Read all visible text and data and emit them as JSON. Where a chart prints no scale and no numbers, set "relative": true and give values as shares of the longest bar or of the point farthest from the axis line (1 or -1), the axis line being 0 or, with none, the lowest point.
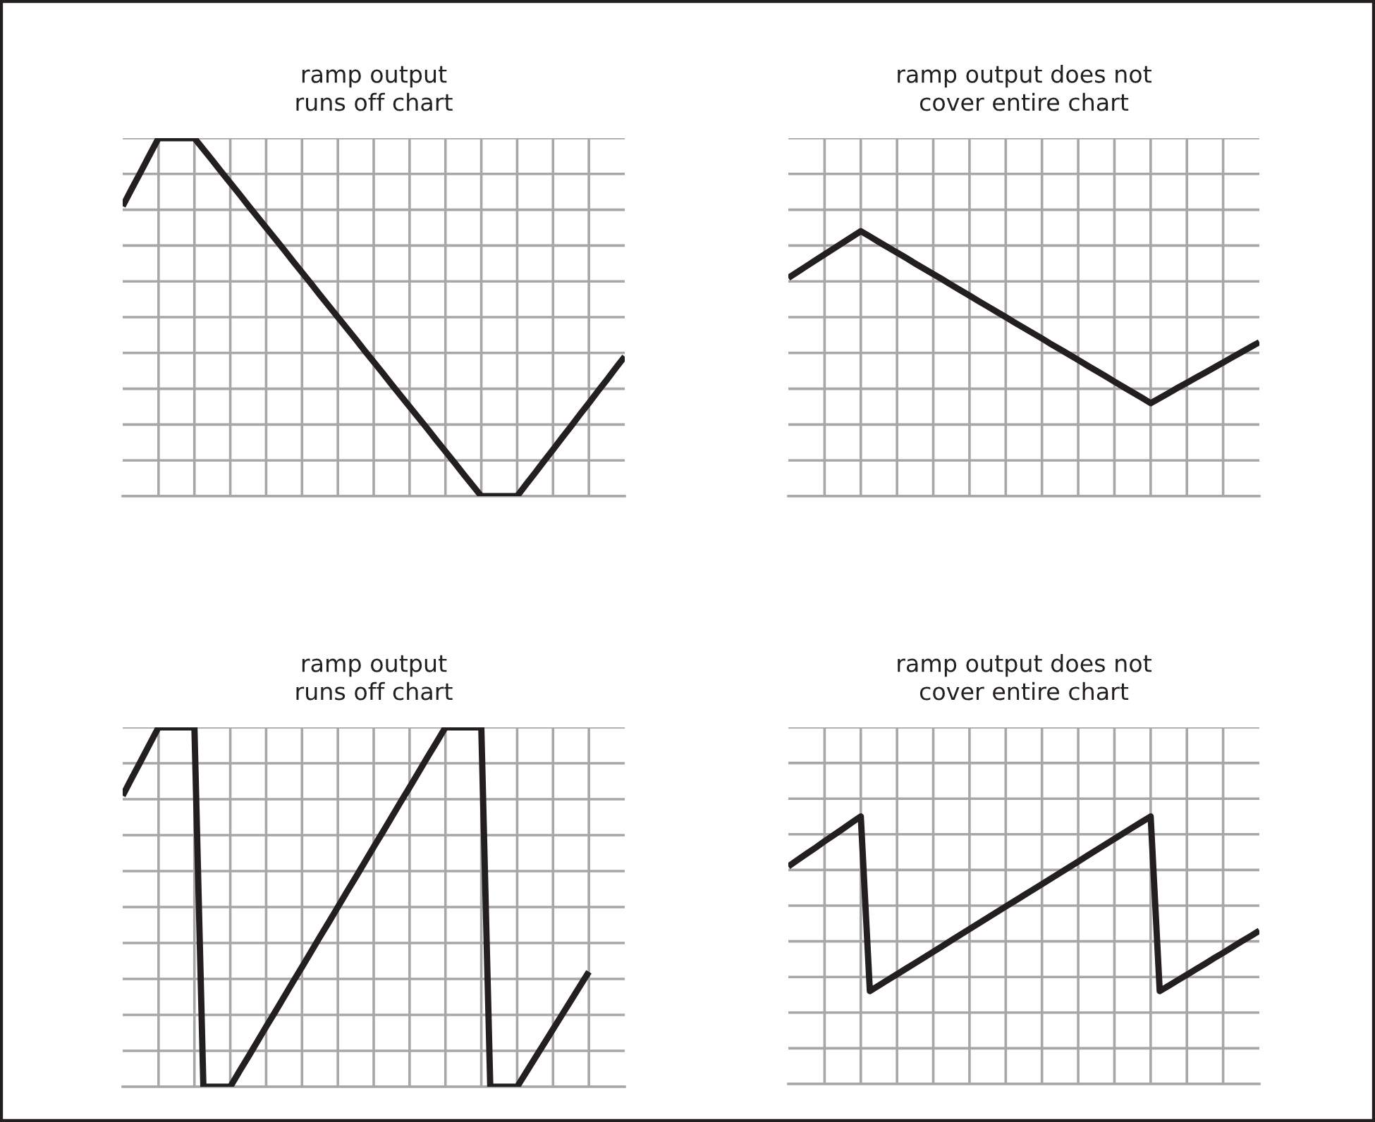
{
  "chart_data": [
    {
      "type": "line",
      "title": "ramp output\nruns off chart",
      "relative": true,
      "color": "#231f20",
      "grid": true,
      "categories": [
        null,
        null,
        null,
        null,
        null,
        null,
        null,
        null,
        null,
        null,
        null,
        null,
        null,
        null,
        null,
        null,
        null,
        null,
        null,
        null,
        null,
        null,
        null,
        null,
        null,
        null,
        null,
        null,
        null,
        null,
        null,
        null,
        null,
        null,
        null,
        null,
        null,
        null,
        null,
        null,
        null,
        null,
        null,
        null,
        null,
        null,
        null,
        null,
        null,
        null,
        null,
        null,
        null,
        null,
        null,
        null,
        null
      ],
      "ylim": [
        0,
        1
      ],
      "values": [
        0.81,
        0.858,
        0.905,
        0.953,
        1,
        1,
        1,
        1,
        1,
        0.969,
        0.938,
        0.906,
        0.875,
        0.844,
        0.812,
        0.781,
        0.75,
        0.719,
        0.688,
        0.656,
        0.625,
        0.594,
        0.562,
        0.531,
        0.5,
        0.469,
        0.438,
        0.406,
        0.375,
        0.344,
        0.312,
        0.281,
        0.25,
        0.219,
        0.188,
        0.156,
        0.125,
        0.094,
        0.062,
        0.031,
        0,
        0,
        0,
        0,
        0,
        0.033,
        0.065,
        0.098,
        0.13,
        0.163,
        0.195,
        0.228,
        0.26,
        0.293,
        0.325,
        0.358,
        0.39
      ]
    },
    {
      "type": "line",
      "title": "ramp output does not\ncover entire chart",
      "relative": true,
      "color": "#231f20",
      "grid": true,
      "categories": [
        null,
        null,
        null,
        null,
        null,
        null,
        null,
        null,
        null,
        null,
        null,
        null,
        null,
        null,
        null,
        null,
        null,
        null,
        null,
        null,
        null,
        null,
        null,
        null,
        null,
        null,
        null,
        null,
        null,
        null,
        null,
        null,
        null,
        null,
        null,
        null,
        null,
        null,
        null,
        null,
        null,
        null,
        null,
        null,
        null,
        null,
        null,
        null,
        null,
        null,
        null,
        null,
        null
      ],
      "ylim": [
        0,
        1.351
      ],
      "values": [
        0.824,
        0.846,
        0.868,
        0.89,
        0.912,
        0.934,
        0.956,
        0.978,
        1,
        0.98,
        0.959,
        0.939,
        0.919,
        0.899,
        0.878,
        0.858,
        0.838,
        0.818,
        0.797,
        0.777,
        0.757,
        0.736,
        0.716,
        0.696,
        0.676,
        0.655,
        0.635,
        0.615,
        0.595,
        0.574,
        0.554,
        0.534,
        0.514,
        0.493,
        0.473,
        0.453,
        0.432,
        0.412,
        0.392,
        0.372,
        0.351,
        0.37,
        0.389,
        0.409,
        0.428,
        0.447,
        0.466,
        0.485,
        0.504,
        0.524,
        0.543,
        0.562,
        0.581
      ]
    },
    {
      "type": "line",
      "title": "ramp output\nruns off chart",
      "relative": true,
      "color": "#231f20",
      "grid": true,
      "categories": [
        null,
        null,
        null,
        null,
        null,
        null,
        null,
        null,
        null,
        null,
        null,
        null,
        null,
        null,
        null,
        null,
        null,
        null,
        null,
        null,
        null,
        null,
        null,
        null,
        null,
        null,
        null,
        null,
        null,
        null,
        null,
        null,
        null,
        null,
        null,
        null,
        null,
        null,
        null,
        null,
        null,
        null,
        null,
        null,
        null,
        null,
        null,
        null,
        null,
        null,
        null,
        null,
        null,
        null,
        null,
        null,
        null
      ],
      "ylim": [
        0,
        1
      ],
      "values": [
        0.81,
        0.858,
        0.905,
        0.953,
        1,
        1,
        1,
        1,
        1,
        0,
        0,
        0,
        0,
        0.042,
        0.083,
        0.125,
        0.167,
        0.208,
        0.25,
        0.292,
        0.333,
        0.375,
        0.417,
        0.458,
        0.5,
        0.542,
        0.583,
        0.625,
        0.667,
        0.708,
        0.75,
        0.792,
        0.833,
        0.875,
        0.917,
        0.958,
        1,
        1,
        1,
        1,
        1,
        0,
        0,
        0,
        0,
        0.04,
        0.08,
        0.12,
        0.16,
        0.2,
        0.24,
        0.28,
        0.32,
        null,
        null,
        null,
        null
      ]
    },
    {
      "type": "line",
      "title": "ramp output does not\ncover entire chart",
      "relative": true,
      "color": "#231f20",
      "grid": true,
      "categories": [
        null,
        null,
        null,
        null,
        null,
        null,
        null,
        null,
        null,
        null,
        null,
        null,
        null,
        null,
        null,
        null,
        null,
        null,
        null,
        null,
        null,
        null,
        null,
        null,
        null,
        null,
        null,
        null,
        null,
        null,
        null,
        null,
        null,
        null,
        null,
        null,
        null,
        null,
        null,
        null,
        null,
        null,
        null,
        null,
        null,
        null,
        null,
        null,
        null,
        null,
        null,
        null,
        null
      ],
      "ylim": [
        0,
        1.333
      ],
      "values": [
        0.813,
        0.837,
        0.86,
        0.883,
        0.907,
        0.93,
        0.953,
        0.977,
        1,
        0.347,
        0.368,
        0.389,
        0.41,
        0.431,
        0.452,
        0.473,
        0.494,
        0.515,
        0.537,
        0.558,
        0.579,
        0.6,
        0.621,
        0.642,
        0.663,
        0.684,
        0.705,
        0.726,
        0.747,
        0.768,
        0.789,
        0.81,
        0.831,
        0.853,
        0.874,
        0.895,
        0.916,
        0.937,
        0.958,
        0.979,
        1,
        0.347,
        0.367,
        0.388,
        0.408,
        0.429,
        0.449,
        0.47,
        0.49,
        0.511,
        0.532,
        0.552,
        0.573
      ]
    }
  ]
}
